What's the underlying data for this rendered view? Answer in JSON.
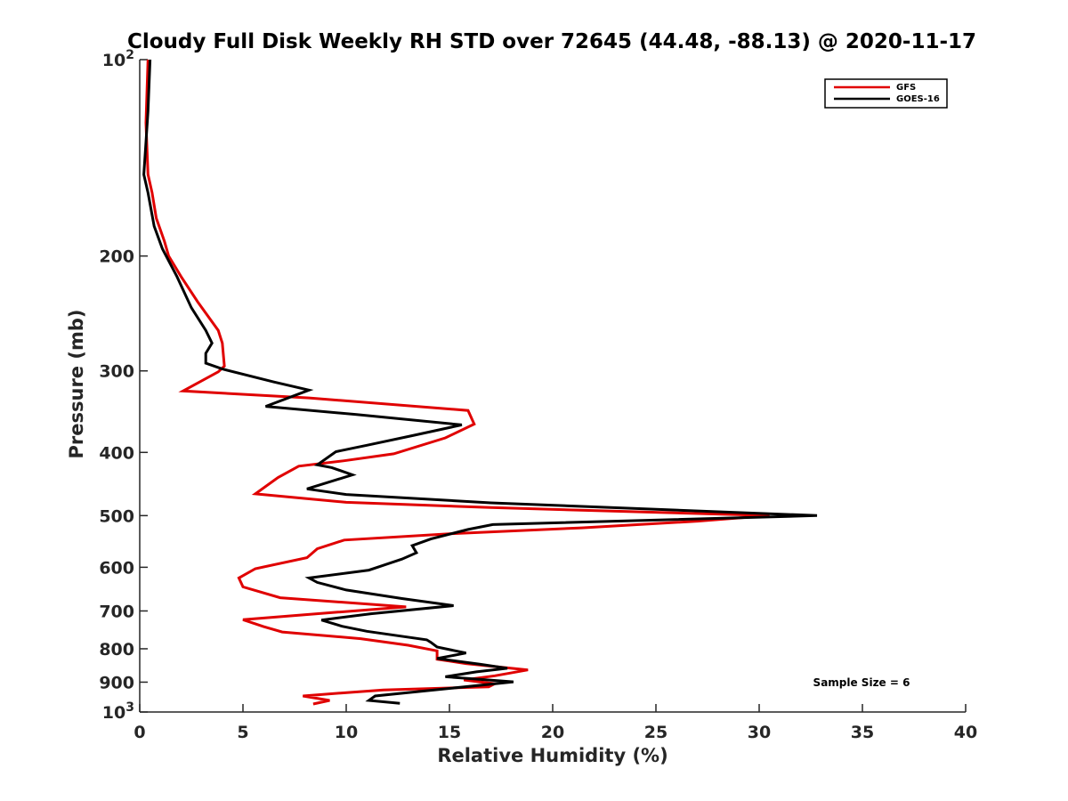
{
  "chart_data": {
    "type": "line",
    "title": "Cloudy Full Disk Weekly RH STD over 72645 (44.48, -88.13) @ 2020-11-17",
    "xlabel": "Relative Humidity (%)",
    "ylabel": "Pressure (mb)",
    "xlim": [
      0,
      40
    ],
    "ylim": [
      100,
      1000
    ],
    "y_scale": "log",
    "y_reversed": true,
    "x_ticks": [
      0,
      5,
      10,
      15,
      20,
      25,
      30,
      35,
      40
    ],
    "y_ticks": [
      {
        "value": 100,
        "label": "10",
        "sup": "2"
      },
      {
        "value": 200,
        "label": "200",
        "sup": ""
      },
      {
        "value": 300,
        "label": "300",
        "sup": ""
      },
      {
        "value": 400,
        "label": "400",
        "sup": ""
      },
      {
        "value": 500,
        "label": "500",
        "sup": ""
      },
      {
        "value": 600,
        "label": "600",
        "sup": ""
      },
      {
        "value": 700,
        "label": "700",
        "sup": ""
      },
      {
        "value": 800,
        "label": "800",
        "sup": ""
      },
      {
        "value": 900,
        "label": "900",
        "sup": ""
      },
      {
        "value": 1000,
        "label": "10",
        "sup": "3"
      }
    ],
    "grid": false,
    "legend_position": "top-right",
    "annotation": "Sample Size = 6",
    "series": [
      {
        "name": "GFS",
        "color": "#e00000",
        "points": [
          [
            0.4,
            100
          ],
          [
            0.3,
            125
          ],
          [
            0.4,
            150
          ],
          [
            0.6,
            160
          ],
          [
            0.8,
            175
          ],
          [
            1.2,
            190
          ],
          [
            1.4,
            200
          ],
          [
            2.0,
            215
          ],
          [
            2.8,
            235
          ],
          [
            3.8,
            260
          ],
          [
            4.0,
            272
          ],
          [
            4.1,
            295
          ],
          [
            3.8,
            301
          ],
          [
            2.1,
            322
          ],
          [
            8.2,
            330
          ],
          [
            15.9,
            345
          ],
          [
            16.2,
            362
          ],
          [
            14.8,
            380
          ],
          [
            12.3,
            402
          ],
          [
            9.9,
            412
          ],
          [
            7.7,
            420
          ],
          [
            6.7,
            437
          ],
          [
            5.6,
            463
          ],
          [
            10.0,
            477
          ],
          [
            17.0,
            486
          ],
          [
            30.5,
            500
          ],
          [
            27.0,
            510
          ],
          [
            21.4,
            522
          ],
          [
            15.0,
            533
          ],
          [
            9.9,
            545
          ],
          [
            8.6,
            562
          ],
          [
            8.1,
            580
          ],
          [
            5.6,
            603
          ],
          [
            4.8,
            623
          ],
          [
            5.0,
            643
          ],
          [
            6.8,
            668
          ],
          [
            12.9,
            690
          ],
          [
            9.6,
            703
          ],
          [
            5.0,
            722
          ],
          [
            6.0,
            740
          ],
          [
            6.9,
            754
          ],
          [
            10.7,
            772
          ],
          [
            13.0,
            790
          ],
          [
            14.4,
            806
          ],
          [
            14.4,
            830
          ],
          [
            15.8,
            843
          ],
          [
            18.8,
            862
          ],
          [
            17.2,
            880
          ],
          [
            15.7,
            893
          ],
          [
            17.2,
            905
          ],
          [
            16.9,
            915
          ],
          [
            11.8,
            925
          ],
          [
            9.8,
            935
          ],
          [
            7.9,
            945
          ],
          [
            9.2,
            960
          ],
          [
            8.4,
            972
          ]
        ]
      },
      {
        "name": "GOES-16",
        "color": "#000000",
        "points": [
          [
            0.5,
            100
          ],
          [
            0.4,
            120
          ],
          [
            0.2,
            150
          ],
          [
            0.4,
            160
          ],
          [
            0.7,
            180
          ],
          [
            1.1,
            195
          ],
          [
            1.8,
            215
          ],
          [
            2.5,
            240
          ],
          [
            3.2,
            260
          ],
          [
            3.5,
            272
          ],
          [
            3.2,
            282
          ],
          [
            3.2,
            292
          ],
          [
            4.0,
            298
          ],
          [
            6.5,
            312
          ],
          [
            8.2,
            321
          ],
          [
            6.1,
            340
          ],
          [
            10.5,
            350
          ],
          [
            15.6,
            363
          ],
          [
            13.2,
            377
          ],
          [
            11.0,
            390
          ],
          [
            9.5,
            399
          ],
          [
            8.6,
            418
          ],
          [
            9.3,
            422
          ],
          [
            10.3,
            433
          ],
          [
            8.1,
            455
          ],
          [
            10.0,
            464
          ],
          [
            17.0,
            478
          ],
          [
            32.8,
            500
          ],
          [
            17.1,
            516
          ],
          [
            15.9,
            525
          ],
          [
            14.1,
            543
          ],
          [
            13.2,
            556
          ],
          [
            13.4,
            570
          ],
          [
            12.7,
            583
          ],
          [
            11.1,
            606
          ],
          [
            8.2,
            623
          ],
          [
            8.6,
            633
          ],
          [
            10.0,
            650
          ],
          [
            12.7,
            670
          ],
          [
            15.2,
            687
          ],
          [
            11.2,
            707
          ],
          [
            8.8,
            723
          ],
          [
            9.8,
            739
          ],
          [
            11.0,
            752
          ],
          [
            13.9,
            775
          ],
          [
            14.1,
            782
          ],
          [
            14.4,
            795
          ],
          [
            15.8,
            812
          ],
          [
            14.4,
            828
          ],
          [
            16.5,
            845
          ],
          [
            17.8,
            857
          ],
          [
            16.3,
            868
          ],
          [
            14.8,
            883
          ],
          [
            18.1,
            899
          ],
          [
            15.0,
            920
          ],
          [
            11.4,
            945
          ],
          [
            11.1,
            960
          ],
          [
            12.6,
            970
          ]
        ]
      }
    ]
  }
}
